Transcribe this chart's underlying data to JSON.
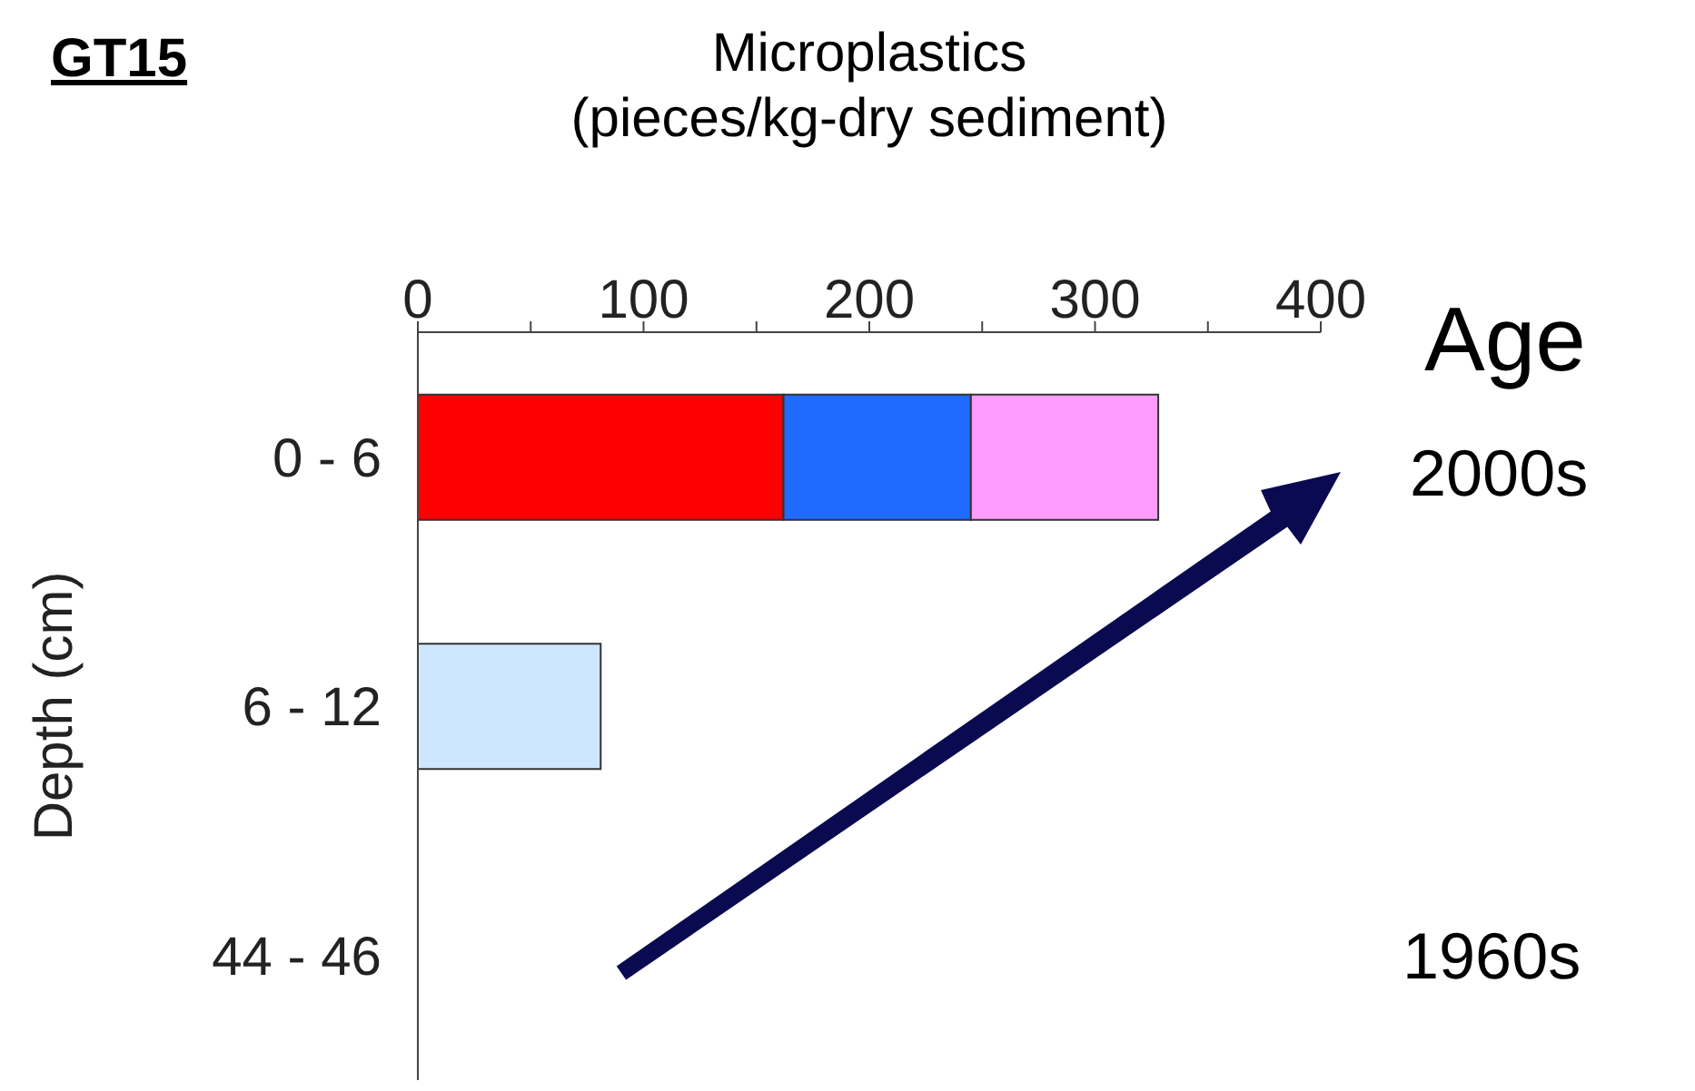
{
  "chart_data": {
    "type": "bar",
    "orientation": "horizontal",
    "stacked": true,
    "xlabel": "Microplastics\n(pieces/kg-dry sediment)",
    "ylabel": "Depth (cm)",
    "categories": [
      "0 - 6",
      "6 - 12",
      "44 - 46"
    ],
    "series": [
      {
        "color": "#ff0000",
        "values": [
          162,
          null,
          null
        ]
      },
      {
        "color": "#1f6bff",
        "values": [
          83,
          null,
          null
        ]
      },
      {
        "color": "#ff9cff",
        "values": [
          83,
          null,
          null
        ]
      },
      {
        "color": "#cfe6ff",
        "values": [
          null,
          81,
          null
        ]
      }
    ],
    "xlim": [
      0,
      400
    ],
    "xticks": [
      0,
      {
        "value": 50,
        "label": null
      },
      100,
      {
        "value": 150,
        "label": null
      },
      200,
      {
        "value": 250,
        "label": null
      },
      300,
      {
        "value": 350,
        "label": null
      },
      400
    ],
    "grid": false,
    "annotations": [
      "GT15",
      "Age",
      "2000s",
      "1960s"
    ]
  }
}
